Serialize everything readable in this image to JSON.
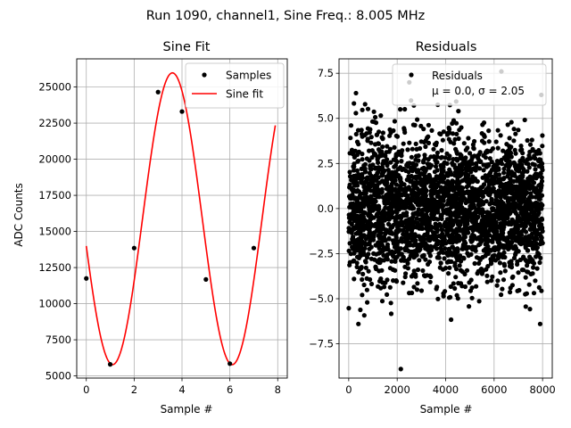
{
  "figure_title": "Run 1090, channel1, Sine Freq.: 8.005 MHz",
  "chart_data": [
    {
      "type": "line",
      "title": "Sine Fit",
      "xlabel": "Sample #",
      "ylabel": "ADC Counts",
      "xlim": [
        -0.4,
        8.4
      ],
      "ylim": [
        4850,
        26950
      ],
      "xticks": [
        0,
        2,
        4,
        6,
        8
      ],
      "xtick_labels": [
        "0",
        "2",
        "4",
        "6",
        "8"
      ],
      "yticks": [
        5000,
        7500,
        10000,
        12500,
        15000,
        17500,
        20000,
        22500,
        25000
      ],
      "ytick_labels": [
        "5000",
        "7500",
        "10000",
        "12500",
        "15000",
        "17500",
        "20000",
        "22500",
        "25000"
      ],
      "grid": true,
      "legend_position": "top-right",
      "series": [
        {
          "name": "Samples",
          "kind": "scatter",
          "color": "#000000",
          "x": [
            0,
            1,
            2,
            3,
            4,
            5,
            6,
            7
          ],
          "y": [
            11750,
            5800,
            13850,
            24650,
            23300,
            11680,
            5850,
            13850
          ]
        },
        {
          "name": "Sine fit",
          "kind": "line",
          "color": "#ff0000",
          "model": {
            "offset": 15880,
            "amplitude": 10100,
            "period_samples": 4.998,
            "phase_sample": 1.1
          },
          "x_range": [
            0,
            7.9
          ]
        }
      ]
    },
    {
      "type": "scatter",
      "title": "Residuals",
      "xlabel": "Sample #",
      "ylabel": "",
      "xlim": [
        -400,
        8400
      ],
      "ylim": [
        -9.4,
        8.3
      ],
      "xticks": [
        0,
        2000,
        4000,
        6000,
        8000
      ],
      "xtick_labels": [
        "0",
        "2000",
        "4000",
        "6000",
        "8000"
      ],
      "yticks": [
        -7.5,
        -5.0,
        -2.5,
        0.0,
        2.5,
        5.0,
        7.5
      ],
      "ytick_labels": [
        "−7.5",
        "−5.0",
        "−2.5",
        "0.0",
        "2.5",
        "5.0",
        "7.5"
      ],
      "grid": true,
      "legend_position": "top-right",
      "series": [
        {
          "name": "Residuals",
          "label_line2": "μ = 0.0, σ = 2.05",
          "color": "#000000",
          "mean": 0.0,
          "std": 2.05,
          "x_range": [
            0,
            8000
          ],
          "n_points": 8000,
          "rendered_points": 3000,
          "extremes": [
            {
              "x": 2150,
              "y": -8.9
            },
            {
              "x": 2500,
              "y": 7.0
            },
            {
              "x": 6300,
              "y": 7.6
            },
            {
              "x": 400,
              "y": -6.4
            },
            {
              "x": 7900,
              "y": -6.4
            },
            {
              "x": 300,
              "y": 6.4
            },
            {
              "x": 7950,
              "y": 6.3
            }
          ]
        }
      ]
    }
  ]
}
